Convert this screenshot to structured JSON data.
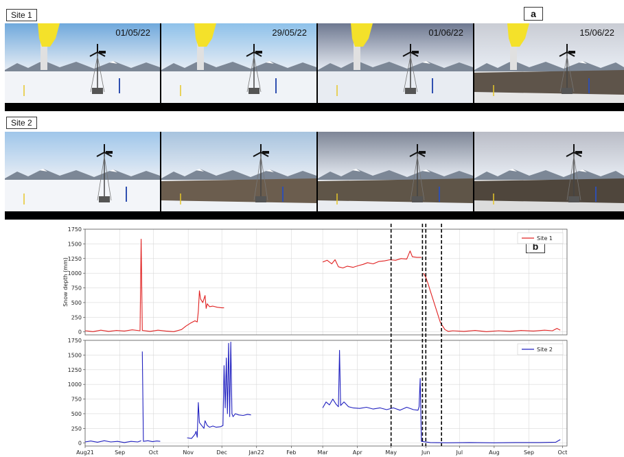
{
  "panel_a": {
    "letter": "a",
    "site1": {
      "label": "Site 1",
      "photos": [
        {
          "date": "01/05/22",
          "sky": "#6fa8dc",
          "ground": "#f2f4f8",
          "bare": "#f2f4f8"
        },
        {
          "date": "29/05/22",
          "sky": "#8ec1ea",
          "ground": "#f0f3f7",
          "bare": "#f0f3f7"
        },
        {
          "date": "01/06/22",
          "sky": "#6e7890",
          "ground": "#e8ecf2",
          "bare": "#e8ecf2"
        },
        {
          "date": "15/06/22",
          "sky": "#c9ccd4",
          "ground": "#e6e6e6",
          "bare": "#5e544a"
        }
      ]
    },
    "site2": {
      "label": "Site 2",
      "photos": [
        {
          "sky": "#9fc6ea",
          "ground": "#f3f5f9",
          "bare": "#f3f5f9"
        },
        {
          "sky": "#a7c3de",
          "ground": "#eef1f5",
          "bare": "#6b5d4e"
        },
        {
          "sky": "#7d8596",
          "ground": "#e9ecf0",
          "bare": "#5f5548"
        },
        {
          "sky": "#b9bcc6",
          "ground": "#dcdcdc",
          "bare": "#4f463c"
        }
      ]
    }
  },
  "panel_b": {
    "letter": "b"
  },
  "icons": {
    "turbine": "wind-turbine-icon",
    "sensor": "snow-depth-sensor-icon"
  },
  "colors": {
    "site1": "#e02020",
    "site2": "#1f1fbf",
    "grid": "#d9d9d9",
    "event": "#000000"
  },
  "chart_data": {
    "type": "line",
    "ylabel": "Snow depth (mm)",
    "ylim": [
      -50,
      1750
    ],
    "yticks": [
      0,
      250,
      500,
      750,
      1000,
      1250,
      1500,
      1750
    ],
    "x_start": "2021-08-01",
    "x_end": "2022-10-05",
    "xticks": [
      {
        "date": "2021-08-01",
        "label": "Aug21"
      },
      {
        "date": "2021-09-01",
        "label": "Sep"
      },
      {
        "date": "2021-10-01",
        "label": "Oct"
      },
      {
        "date": "2021-11-01",
        "label": "Nov"
      },
      {
        "date": "2021-12-01",
        "label": "Dec"
      },
      {
        "date": "2022-01-01",
        "label": "Jan22"
      },
      {
        "date": "2022-02-01",
        "label": "Feb"
      },
      {
        "date": "2022-03-01",
        "label": "Mar"
      },
      {
        "date": "2022-04-01",
        "label": "Apr"
      },
      {
        "date": "2022-05-01",
        "label": "May"
      },
      {
        "date": "2022-06-01",
        "label": "Jun"
      },
      {
        "date": "2022-07-01",
        "label": "Jul"
      },
      {
        "date": "2022-08-01",
        "label": "Aug"
      },
      {
        "date": "2022-09-01",
        "label": "Sep"
      },
      {
        "date": "2022-10-01",
        "label": "Oct"
      }
    ],
    "event_lines": [
      "2022-05-01",
      "2022-05-29",
      "2022-06-01",
      "2022-06-15"
    ],
    "grid": true,
    "legend_position": "top-right",
    "series": [
      {
        "name": "Site 1",
        "segments": [
          [
            [
              "2021-08-01",
              20
            ],
            [
              "2021-08-08",
              5
            ],
            [
              "2021-08-15",
              30
            ],
            [
              "2021-08-22",
              10
            ],
            [
              "2021-08-29",
              25
            ],
            [
              "2021-09-05",
              15
            ],
            [
              "2021-09-12",
              35
            ],
            [
              "2021-09-19",
              20
            ],
            [
              "2021-09-20",
              1580
            ],
            [
              "2021-09-21",
              25
            ],
            [
              "2021-09-28",
              10
            ],
            [
              "2021-10-05",
              30
            ],
            [
              "2021-10-12",
              15
            ],
            [
              "2021-10-19",
              5
            ],
            [
              "2021-10-26",
              40
            ],
            [
              "2021-10-30",
              100
            ],
            [
              "2021-11-03",
              150
            ],
            [
              "2021-11-07",
              190
            ],
            [
              "2021-11-09",
              170
            ],
            [
              "2021-11-10",
              350
            ],
            [
              "2021-11-11",
              700
            ],
            [
              "2021-11-12",
              560
            ],
            [
              "2021-11-14",
              500
            ],
            [
              "2021-11-16",
              620
            ],
            [
              "2021-11-17",
              400
            ],
            [
              "2021-11-18",
              480
            ],
            [
              "2021-11-20",
              430
            ],
            [
              "2021-11-23",
              440
            ],
            [
              "2021-11-27",
              420
            ],
            [
              "2021-12-01",
              410
            ],
            [
              "2021-12-03",
              410
            ]
          ],
          [
            [
              "2022-03-01",
              1190
            ],
            [
              "2022-03-05",
              1220
            ],
            [
              "2022-03-09",
              1160
            ],
            [
              "2022-03-12",
              1230
            ],
            [
              "2022-03-15",
              1110
            ],
            [
              "2022-03-19",
              1090
            ],
            [
              "2022-03-23",
              1120
            ],
            [
              "2022-03-28",
              1100
            ],
            [
              "2022-04-02",
              1130
            ],
            [
              "2022-04-06",
              1150
            ],
            [
              "2022-04-10",
              1180
            ],
            [
              "2022-04-15",
              1160
            ],
            [
              "2022-04-20",
              1200
            ],
            [
              "2022-04-25",
              1210
            ],
            [
              "2022-04-30",
              1230
            ],
            [
              "2022-05-05",
              1220
            ],
            [
              "2022-05-10",
              1250
            ],
            [
              "2022-05-15",
              1240
            ],
            [
              "2022-05-18",
              1380
            ],
            [
              "2022-05-20",
              1280
            ],
            [
              "2022-05-24",
              1270
            ],
            [
              "2022-05-28",
              1270
            ]
          ],
          [
            [
              "2022-05-30",
              1000
            ],
            [
              "2022-06-01",
              930
            ],
            [
              "2022-06-03",
              820
            ],
            [
              "2022-06-05",
              700
            ],
            [
              "2022-06-08",
              520
            ],
            [
              "2022-06-11",
              340
            ],
            [
              "2022-06-14",
              160
            ],
            [
              "2022-06-18",
              40
            ],
            [
              "2022-06-21",
              10
            ],
            [
              "2022-06-25",
              20
            ],
            [
              "2022-07-05",
              10
            ],
            [
              "2022-07-15",
              25
            ],
            [
              "2022-07-25",
              5
            ],
            [
              "2022-08-05",
              20
            ],
            [
              "2022-08-15",
              10
            ],
            [
              "2022-08-25",
              25
            ],
            [
              "2022-09-05",
              15
            ],
            [
              "2022-09-15",
              30
            ],
            [
              "2022-09-22",
              20
            ],
            [
              "2022-09-26",
              60
            ],
            [
              "2022-09-29",
              30
            ]
          ]
        ]
      },
      {
        "name": "Site 2",
        "segments": [
          [
            [
              "2021-08-01",
              20
            ],
            [
              "2021-08-06",
              35
            ],
            [
              "2021-08-12",
              15
            ],
            [
              "2021-08-18",
              40
            ],
            [
              "2021-08-24",
              20
            ],
            [
              "2021-08-30",
              30
            ],
            [
              "2021-09-05",
              10
            ],
            [
              "2021-09-11",
              30
            ],
            [
              "2021-09-17",
              20
            ],
            [
              "2021-09-20",
              40
            ]
          ],
          [
            [
              "2021-09-21",
              1560
            ],
            [
              "2021-09-22",
              30
            ],
            [
              "2021-09-26",
              40
            ],
            [
              "2021-09-30",
              25
            ],
            [
              "2021-10-04",
              35
            ],
            [
              "2021-10-07",
              30
            ]
          ],
          [
            [
              "2021-10-31",
              90
            ],
            [
              "2021-11-04",
              80
            ],
            [
              "2021-11-07",
              150
            ],
            [
              "2021-11-08",
              200
            ],
            [
              "2021-11-09",
              100
            ],
            [
              "2021-11-10",
              690
            ],
            [
              "2021-11-11",
              350
            ],
            [
              "2021-11-13",
              300
            ],
            [
              "2021-11-15",
              250
            ],
            [
              "2021-11-16",
              380
            ],
            [
              "2021-11-18",
              300
            ],
            [
              "2021-11-20",
              270
            ],
            [
              "2021-11-23",
              290
            ],
            [
              "2021-11-26",
              270
            ],
            [
              "2021-11-30",
              280
            ],
            [
              "2021-12-02",
              300
            ],
            [
              "2021-12-03",
              1320
            ],
            [
              "2021-12-04",
              600
            ],
            [
              "2021-12-05",
              1450
            ],
            [
              "2021-12-06",
              500
            ],
            [
              "2021-12-07",
              1700
            ],
            [
              "2021-12-08",
              450
            ],
            [
              "2021-12-09",
              1720
            ],
            [
              "2021-12-10",
              500
            ],
            [
              "2021-12-11",
              450
            ],
            [
              "2021-12-13",
              500
            ],
            [
              "2021-12-16",
              480
            ],
            [
              "2021-12-20",
              470
            ],
            [
              "2021-12-24",
              490
            ],
            [
              "2021-12-27",
              480
            ]
          ],
          [
            [
              "2022-03-01",
              600
            ],
            [
              "2022-03-04",
              700
            ],
            [
              "2022-03-07",
              650
            ],
            [
              "2022-03-10",
              750
            ],
            [
              "2022-03-13",
              660
            ],
            [
              "2022-03-15",
              620
            ],
            [
              "2022-03-16",
              1580
            ],
            [
              "2022-03-17",
              640
            ],
            [
              "2022-03-20",
              700
            ],
            [
              "2022-03-24",
              620
            ],
            [
              "2022-03-28",
              600
            ],
            [
              "2022-04-03",
              590
            ],
            [
              "2022-04-09",
              610
            ],
            [
              "2022-04-15",
              580
            ],
            [
              "2022-04-21",
              600
            ],
            [
              "2022-04-27",
              570
            ],
            [
              "2022-05-03",
              600
            ],
            [
              "2022-05-09",
              560
            ],
            [
              "2022-05-15",
              610
            ],
            [
              "2022-05-21",
              570
            ],
            [
              "2022-05-25",
              560
            ],
            [
              "2022-05-26",
              620
            ],
            [
              "2022-05-27",
              1100
            ],
            [
              "2022-05-28",
              30
            ],
            [
              "2022-06-05",
              10
            ],
            [
              "2022-06-20",
              5
            ],
            [
              "2022-07-10",
              10
            ],
            [
              "2022-08-01",
              5
            ],
            [
              "2022-08-20",
              10
            ],
            [
              "2022-09-10",
              10
            ],
            [
              "2022-09-25",
              15
            ],
            [
              "2022-09-29",
              60
            ]
          ]
        ]
      }
    ]
  }
}
